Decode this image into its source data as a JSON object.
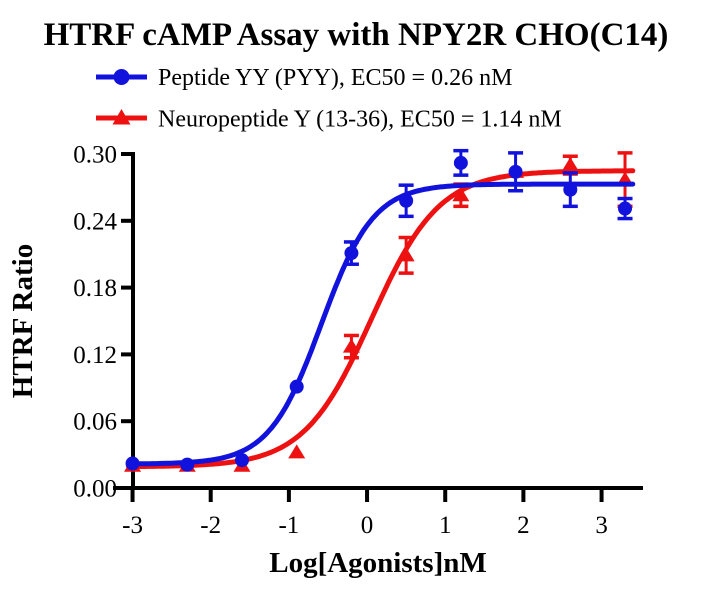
{
  "chart_data": {
    "type": "scatter",
    "title": "HTRF cAMP Assay with NPY2R CHO(C14)",
    "xlabel": "Log[Agonists]nM",
    "ylabel": "HTRF Ratio",
    "xlim": [
      -3.25,
      3.53
    ],
    "ylim": [
      0,
      0.3
    ],
    "grid": false,
    "legend_position": "top",
    "x_ticks": [
      {
        "v": -3,
        "label": "-3"
      },
      {
        "v": -2,
        "label": "-2"
      },
      {
        "v": -1,
        "label": "-1"
      },
      {
        "v": 0,
        "label": "0"
      },
      {
        "v": 1,
        "label": "1"
      },
      {
        "v": 2,
        "label": "2"
      },
      {
        "v": 3,
        "label": "3"
      }
    ],
    "y_ticks": [
      {
        "v": 0.0,
        "label": "0.00"
      },
      {
        "v": 0.06,
        "label": "0.06"
      },
      {
        "v": 0.12,
        "label": "0.12"
      },
      {
        "v": 0.18,
        "label": "0.18"
      },
      {
        "v": 0.24,
        "label": "0.24"
      },
      {
        "v": 0.3,
        "label": "0.30"
      }
    ],
    "x": [
      -3.0,
      -2.3,
      -1.6,
      -0.9,
      -0.2,
      0.5,
      1.2,
      1.9,
      2.6,
      3.3
    ],
    "fit_range": [
      -3.05,
      3.4
    ],
    "series": [
      {
        "id": "pyy",
        "name": "Peptide YY (PYY)",
        "ec50_nM": 0.26,
        "legend": "Peptide YY (PYY),  EC50 = 0.26 nM",
        "color": "#1212dd",
        "marker": "circle",
        "y": [
          0.022,
          0.021,
          0.025,
          0.091,
          0.211,
          0.258,
          0.292,
          0.284,
          0.268,
          0.251
        ],
        "err": [
          0,
          0,
          0,
          0,
          0.01,
          0.014,
          0.011,
          0.017,
          0.015,
          0.009
        ],
        "fit": {
          "bottom": 0.0215,
          "top": 0.273,
          "logEC50": -0.585,
          "hill": 1.3
        }
      },
      {
        "id": "npy",
        "name": "Neuropeptide Y (13-36)",
        "ec50_nM": 1.14,
        "legend": "Neuropeptide Y (13-36),  EC50 = 1.14 nM",
        "color": "#ee1111",
        "marker": "triangle",
        "y": [
          0.02,
          0.02,
          0.02,
          0.032,
          0.127,
          0.209,
          0.263,
          0.284,
          0.29,
          0.277
        ],
        "err": [
          0,
          0,
          0,
          0,
          0.01,
          0.016,
          0.01,
          0,
          0.008,
          0.024
        ],
        "fit": {
          "bottom": 0.019,
          "top": 0.285,
          "logEC50": 0.057,
          "hill": 1.0
        }
      }
    ]
  }
}
